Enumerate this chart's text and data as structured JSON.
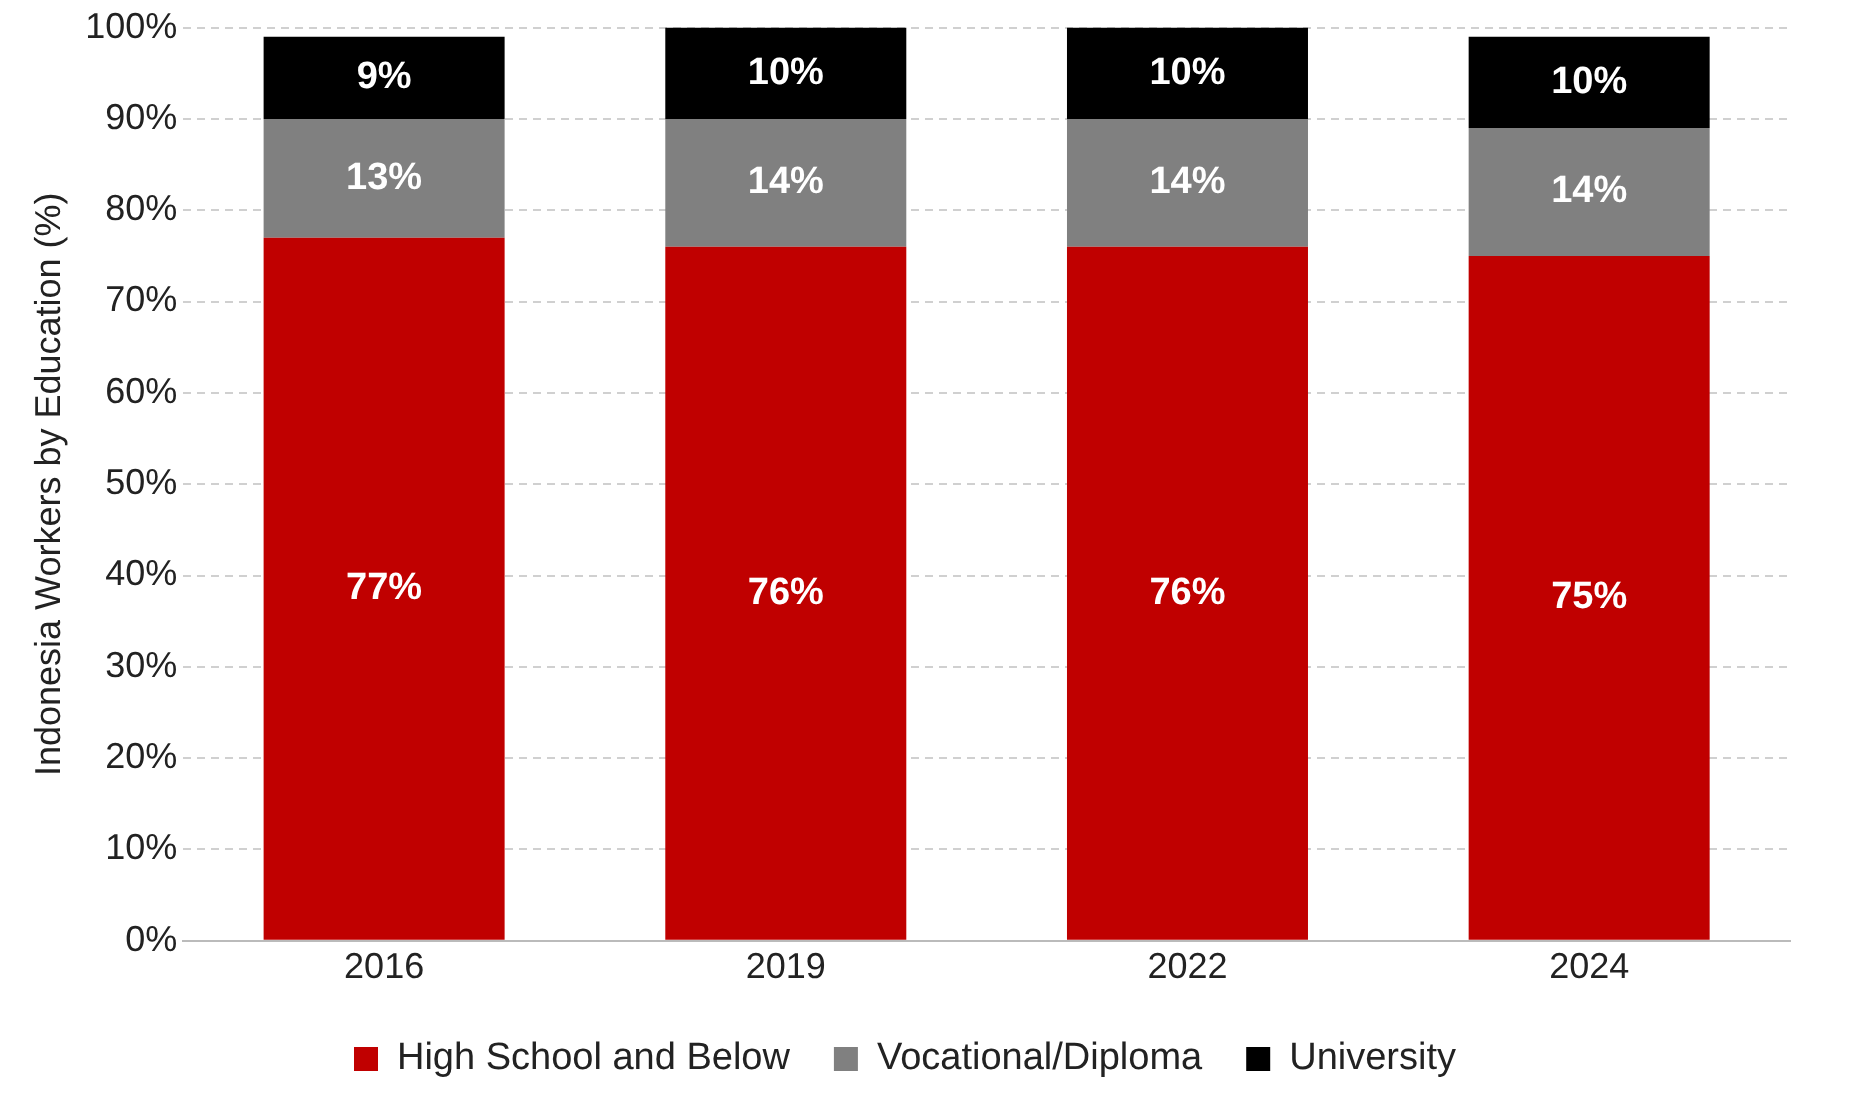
{
  "chart_data": {
    "type": "bar",
    "stacked": true,
    "ylabel": "Indonesia Workers by Education (%)",
    "categories": [
      "2016",
      "2019",
      "2022",
      "2024"
    ],
    "series": [
      {
        "name": "High School and Below",
        "color": "#c00000",
        "values": [
          77,
          76,
          76,
          75
        ],
        "value_labels": [
          "77%",
          "76%",
          "76%",
          "75%"
        ]
      },
      {
        "name": "Vocational/Diploma",
        "color": "#808080",
        "values": [
          13,
          14,
          14,
          14
        ],
        "value_labels": [
          "13%",
          "14%",
          "14%",
          "14%"
        ]
      },
      {
        "name": "University",
        "color": "#000000",
        "values": [
          9,
          10,
          10,
          10
        ],
        "value_labels": [
          "9%",
          "10%",
          "10%",
          "10%"
        ]
      }
    ],
    "ylim": [
      0,
      100
    ],
    "yticks": [
      {
        "value": 0,
        "label": "0%"
      },
      {
        "value": 10,
        "label": "10%"
      },
      {
        "value": 20,
        "label": "20%"
      },
      {
        "value": 30,
        "label": "30%"
      },
      {
        "value": 40,
        "label": "40%"
      },
      {
        "value": 50,
        "label": "50%"
      },
      {
        "value": 60,
        "label": "60%"
      },
      {
        "value": 70,
        "label": "70%"
      },
      {
        "value": 80,
        "label": "80%"
      },
      {
        "value": 90,
        "label": "90%"
      },
      {
        "value": 100,
        "label": "100%"
      }
    ],
    "grid": "y",
    "legend": "bottom"
  }
}
